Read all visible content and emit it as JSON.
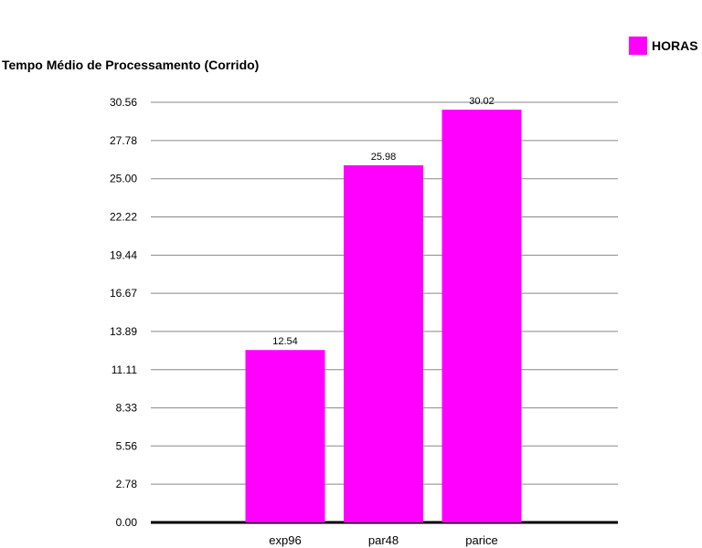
{
  "chart_data": {
    "type": "bar",
    "title": "Tempo Médio de Processamento (Corrido)",
    "categories": [
      "exp96",
      "par48",
      "parice"
    ],
    "series": [
      {
        "name": "HORAS",
        "values": [
          12.54,
          25.98,
          30.02
        ],
        "color": "#ff00ff"
      }
    ],
    "data_labels": [
      "12.54",
      "25.98",
      "30.02"
    ],
    "yticks": [
      "0.00",
      "2.78",
      "5.56",
      "8.33",
      "11.11",
      "13.89",
      "16.67",
      "19.44",
      "22.22",
      "25.00",
      "27.78",
      "30.56"
    ],
    "ylim": [
      0,
      30.56
    ],
    "grid": true,
    "legend_position": "top-right",
    "xlabel": "",
    "ylabel": ""
  }
}
